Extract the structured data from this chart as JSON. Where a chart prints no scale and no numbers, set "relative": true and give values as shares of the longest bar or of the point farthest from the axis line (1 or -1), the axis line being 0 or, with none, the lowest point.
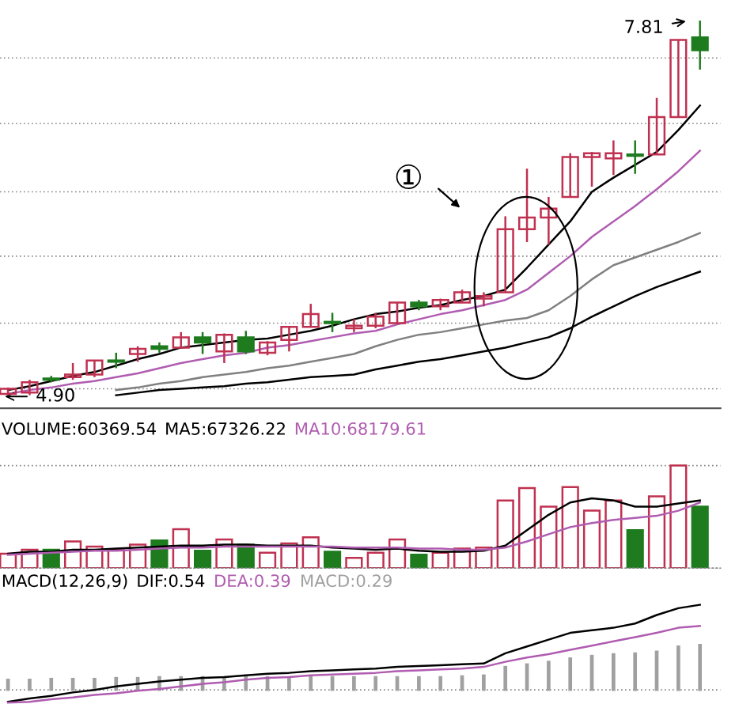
{
  "chart_data": [
    {
      "type": "candlestick",
      "categories": [
        null,
        null,
        null,
        null,
        null,
        null,
        null,
        null,
        null,
        null,
        null,
        null,
        null,
        null,
        null,
        null,
        null,
        null,
        null,
        null,
        null,
        null,
        null,
        null,
        null,
        null,
        null,
        null,
        null,
        null,
        null,
        null,
        null
      ],
      "ohlc": [
        [
          4.91,
          4.96,
          4.9,
          4.95
        ],
        [
          4.92,
          5.02,
          4.9,
          5.0
        ],
        [
          5.03,
          5.05,
          5.0,
          5.02
        ],
        [
          5.04,
          5.15,
          5.02,
          5.06
        ],
        [
          5.06,
          5.17,
          5.04,
          5.17
        ],
        [
          5.16,
          5.23,
          5.11,
          5.17
        ],
        [
          5.22,
          5.28,
          5.16,
          5.26
        ],
        [
          5.28,
          5.31,
          5.23,
          5.26
        ],
        [
          5.27,
          5.39,
          5.27,
          5.35
        ],
        [
          5.35,
          5.39,
          5.22,
          5.31
        ],
        [
          5.24,
          5.38,
          5.15,
          5.37
        ],
        [
          5.35,
          5.4,
          5.22,
          5.24
        ],
        [
          5.23,
          5.32,
          5.21,
          5.31
        ],
        [
          5.33,
          5.43,
          5.24,
          5.43
        ],
        [
          5.43,
          5.61,
          5.43,
          5.53
        ],
        [
          5.47,
          5.54,
          5.39,
          5.46
        ],
        [
          5.42,
          5.49,
          5.39,
          5.44
        ],
        [
          5.44,
          5.54,
          5.42,
          5.51
        ],
        [
          5.46,
          5.62,
          5.45,
          5.62
        ],
        [
          5.62,
          5.64,
          5.56,
          5.59
        ],
        [
          5.59,
          5.65,
          5.56,
          5.64
        ],
        [
          5.62,
          5.72,
          5.62,
          5.7
        ],
        [
          5.65,
          5.7,
          5.59,
          5.67
        ],
        [
          5.7,
          6.29,
          5.7,
          6.19
        ],
        [
          6.19,
          6.66,
          6.09,
          6.28
        ],
        [
          6.28,
          6.44,
          6.07,
          6.35
        ],
        [
          6.44,
          6.78,
          6.44,
          6.75
        ],
        [
          6.75,
          6.79,
          6.52,
          6.78
        ],
        [
          6.74,
          6.88,
          6.61,
          6.78
        ],
        [
          6.77,
          6.88,
          6.62,
          6.76
        ],
        [
          6.77,
          7.21,
          6.77,
          7.06
        ],
        [
          7.06,
          7.66,
          7.06,
          7.66
        ],
        [
          7.68,
          7.81,
          7.43,
          7.58
        ]
      ],
      "colors": [
        "#c03050",
        "#c03050",
        "#1e7b1e",
        "#c03050",
        "#c03050",
        "#1e7b1e",
        "#c03050",
        "#1e7b1e",
        "#c03050",
        "#1e7b1e",
        "#c03050",
        "#1e7b1e",
        "#c03050",
        "#c03050",
        "#c03050",
        "#1e7b1e",
        "#c03050",
        "#c03050",
        "#c03050",
        "#1e7b1e",
        "#c03050",
        "#c03050",
        "#c03050",
        "#c03050",
        "#c03050",
        "#c03050",
        "#c03050",
        "#c03050",
        "#c03050",
        "#1e7b1e",
        "#c03050",
        "#c03050",
        "#1e7b1e"
      ],
      "series": [
        {
          "type": "line",
          "color": "#000000",
          "values": [
            4.94,
            4.97,
            5.01,
            5.05,
            5.08,
            5.13,
            5.18,
            5.22,
            5.27,
            5.29,
            5.31,
            5.33,
            5.34,
            5.37,
            5.4,
            5.44,
            5.49,
            5.53,
            5.55,
            5.58,
            5.6,
            5.64,
            5.67,
            5.72,
            5.89,
            6.07,
            6.25,
            6.48,
            6.59,
            6.69,
            6.79,
            6.96,
            7.15
          ]
        },
        {
          "type": "line",
          "color": "#b05cb0",
          "values": [
            4.91,
            4.94,
            4.96,
            4.99,
            5.01,
            5.04,
            5.07,
            5.11,
            5.15,
            5.18,
            5.21,
            5.23,
            5.27,
            5.29,
            5.32,
            5.35,
            5.38,
            5.4,
            5.45,
            5.49,
            5.53,
            5.56,
            5.6,
            5.64,
            5.72,
            5.85,
            5.98,
            6.13,
            6.25,
            6.37,
            6.5,
            6.64,
            6.8
          ]
        },
        {
          "type": "line",
          "color": "#808080",
          "values": [
            null,
            null,
            null,
            null,
            null,
            4.94,
            4.96,
            4.99,
            5.01,
            5.04,
            5.06,
            5.08,
            5.11,
            5.13,
            5.16,
            5.19,
            5.22,
            5.28,
            5.33,
            5.37,
            5.39,
            5.42,
            5.45,
            5.48,
            5.5,
            5.56,
            5.67,
            5.8,
            5.91,
            5.97,
            6.03,
            6.09,
            6.16
          ]
        },
        {
          "type": "line",
          "color": "#000000",
          "values": [
            null,
            null,
            null,
            null,
            null,
            4.9,
            4.92,
            4.94,
            4.95,
            4.96,
            4.97,
            4.99,
            5.0,
            5.02,
            5.04,
            5.05,
            5.06,
            5.1,
            5.13,
            5.16,
            5.18,
            5.21,
            5.24,
            5.27,
            5.31,
            5.35,
            5.42,
            5.51,
            5.59,
            5.67,
            5.74,
            5.8,
            5.86
          ]
        }
      ],
      "yticks": [
        {
          "value": 4.95,
          "label": null
        },
        {
          "value": 5.46,
          "label": null
        },
        {
          "value": 5.98,
          "label": null
        },
        {
          "value": 6.48,
          "label": null
        },
        {
          "value": 7.01,
          "label": null
        },
        {
          "value": 7.52,
          "label": null
        }
      ],
      "grid": "y",
      "annotations": [
        "①",
        "7.81",
        "4.90"
      ]
    },
    {
      "type": "bar",
      "relative": true,
      "title": "VOLUME:60369.54",
      "categories": [
        null,
        null,
        null,
        null,
        null,
        null,
        null,
        null,
        null,
        null,
        null,
        null,
        null,
        null,
        null,
        null,
        null,
        null,
        null,
        null,
        null,
        null,
        null,
        null,
        null,
        null,
        null,
        null,
        null,
        null,
        null,
        null,
        null
      ],
      "series": [
        {
          "colors": [
            "#c03050",
            "#c03050",
            "#1e7b1e",
            "#c03050",
            "#c03050",
            "#c03050",
            "#c03050",
            "#1e7b1e",
            "#c03050",
            "#1e7b1e",
            "#c03050",
            "#1e7b1e",
            "#c03050",
            "#c03050",
            "#c03050",
            "#1e7b1e",
            "#c03050",
            "#c03050",
            "#c03050",
            "#1e7b1e",
            "#c03050",
            "#c03050",
            "#c03050",
            "#c03050",
            "#c03050",
            "#c03050",
            "#c03050",
            "#c03050",
            "#c03050",
            "#1e7b1e",
            "#c03050",
            "#c03050",
            "#1e7b1e"
          ],
          "values": [
            0.14,
            0.18,
            0.18,
            0.26,
            0.21,
            0.18,
            0.23,
            0.27,
            0.38,
            0.17,
            0.28,
            0.23,
            0.15,
            0.24,
            0.3,
            0.16,
            0.1,
            0.15,
            0.28,
            0.13,
            0.15,
            0.19,
            0.2,
            0.66,
            0.78,
            0.6,
            0.79,
            0.56,
            0.66,
            0.37,
            0.7,
            1,
            0.6
          ]
        },
        {
          "name": "MA5:67326.22",
          "type": "line",
          "color": "#000000",
          "values": [
            0.14,
            0.16,
            0.16,
            0.18,
            0.18,
            0.19,
            0.2,
            0.21,
            0.22,
            0.22,
            0.23,
            0.23,
            0.22,
            0.22,
            0.22,
            0.2,
            0.19,
            0.18,
            0.19,
            0.17,
            0.16,
            0.16,
            0.17,
            0.22,
            0.37,
            0.52,
            0.64,
            0.68,
            0.66,
            0.6,
            0.6,
            0.63,
            0.66
          ]
        },
        {
          "name": "MA10:68179.61",
          "type": "line",
          "color": "#b05cb0",
          "values": [
            0.13,
            0.14,
            0.15,
            0.16,
            0.17,
            0.17,
            0.18,
            0.19,
            0.2,
            0.2,
            0.21,
            0.21,
            0.21,
            0.21,
            0.21,
            0.21,
            0.2,
            0.2,
            0.2,
            0.19,
            0.19,
            0.18,
            0.18,
            0.2,
            0.26,
            0.33,
            0.4,
            0.44,
            0.47,
            0.49,
            0.51,
            0.56,
            0.64
          ]
        }
      ],
      "legend": "top left",
      "grid": "y"
    },
    {
      "type": "line",
      "relative": true,
      "title": "MACD(12,26,9)",
      "categories": [
        null,
        null,
        null,
        null,
        null,
        null,
        null,
        null,
        null,
        null,
        null,
        null,
        null,
        null,
        null,
        null,
        null,
        null,
        null,
        null,
        null,
        null,
        null,
        null,
        null,
        null,
        null,
        null,
        null,
        null,
        null,
        null,
        null
      ],
      "series": [
        {
          "name": "DIF:0.54",
          "color": "#000000",
          "values": [
            -0.14,
            -0.1,
            -0.07,
            -0.03,
            0.0,
            0.04,
            0.07,
            0.1,
            0.12,
            0.14,
            0.15,
            0.17,
            0.19,
            0.2,
            0.22,
            0.23,
            0.24,
            0.25,
            0.27,
            0.28,
            0.29,
            0.3,
            0.31,
            0.43,
            0.51,
            0.59,
            0.67,
            0.7,
            0.73,
            0.78,
            0.88,
            0.96,
            1
          ]
        },
        {
          "name": "DEA:0.39",
          "color": "#b05cb0",
          "values": [
            -0.15,
            -0.14,
            -0.11,
            -0.09,
            -0.06,
            -0.04,
            -0.01,
            0.01,
            0.04,
            0.07,
            0.09,
            0.12,
            0.14,
            0.15,
            0.17,
            0.18,
            0.19,
            0.2,
            0.22,
            0.23,
            0.24,
            0.25,
            0.27,
            0.33,
            0.38,
            0.42,
            0.47,
            0.52,
            0.57,
            0.62,
            0.67,
            0.73,
            0.75
          ]
        },
        {
          "name": "MACD:0.29",
          "type": "bar",
          "color": "#a0a0a0",
          "values": [
            0.12,
            0.12,
            0.13,
            0.13,
            0.13,
            0.14,
            0.14,
            0.15,
            0.15,
            0.15,
            0.15,
            0.15,
            0.15,
            0.15,
            0.15,
            0.15,
            0.15,
            0.15,
            0.15,
            0.15,
            0.15,
            0.16,
            0.17,
            0.27,
            0.3,
            0.33,
            0.37,
            0.4,
            0.42,
            0.43,
            0.45,
            0.51,
            0.53
          ]
        }
      ],
      "legend": "top left",
      "ref_lines": [
        {
          "axis": "y",
          "value": 0,
          "color": "#888888",
          "line_style": "dotted"
        }
      ]
    }
  ]
}
